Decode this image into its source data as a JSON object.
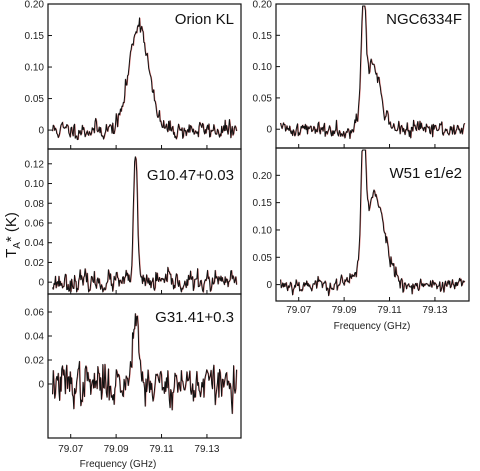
{
  "chart_data": {
    "type": "line",
    "ylabel_main": "T",
    "ylabel_sub": "A",
    "ylabel_rest": "* (K)",
    "xlabel": "Frequency (GHz)",
    "xlim": [
      79.06,
      79.145
    ],
    "xticks": [
      "79.07",
      "79.09",
      "79.11",
      "79.13"
    ],
    "panels": [
      {
        "name": "Orion KL",
        "ylim": [
          -0.03,
          0.2
        ],
        "yticks": [
          "0.20",
          "0.15",
          "0.10",
          "0.05",
          "0"
        ],
        "peak": 0.17,
        "center": 79.1,
        "width": 0.0042,
        "noise": 0.011,
        "seed": 11
      },
      {
        "name": "G10.47+0.03",
        "ylim": [
          -0.012,
          0.135
        ],
        "yticks": [
          "0.12",
          "0.10",
          "0.08",
          "0.06",
          "0.04",
          "0.02",
          "0"
        ],
        "peak": 0.123,
        "center": 79.0985,
        "width": 0.0009,
        "noise": 0.008,
        "seed": 23
      },
      {
        "name": "G31.41+0.3",
        "ylim": [
          -0.045,
          0.075
        ],
        "yticks": [
          "0.06",
          "0.04",
          "0.02",
          "0"
        ],
        "peak": 0.065,
        "center": 79.0985,
        "width": 0.0013,
        "noise": 0.013,
        "seed": 37
      },
      {
        "name": "NGC6334F",
        "ylim": [
          -0.03,
          0.2
        ],
        "yticks": [
          "0.20",
          "0.15",
          "0.10",
          "0.05",
          "0"
        ],
        "peak": 0.19,
        "center": 79.0985,
        "width": 0.0009,
        "noise": 0.01,
        "seed": 41,
        "extra": [
          {
            "c": 79.1025,
            "a": 0.1,
            "w": 0.0035
          }
        ]
      },
      {
        "name": "W51 e1/e2",
        "ylim": [
          -0.03,
          0.25
        ],
        "yticks": [
          "0.20",
          "0.15",
          "0.10",
          "0.05",
          "0"
        ],
        "peak": 0.23,
        "center": 79.0985,
        "width": 0.0009,
        "noise": 0.011,
        "seed": 53,
        "extra": [
          {
            "c": 79.1035,
            "a": 0.16,
            "w": 0.0045
          }
        ]
      }
    ]
  }
}
